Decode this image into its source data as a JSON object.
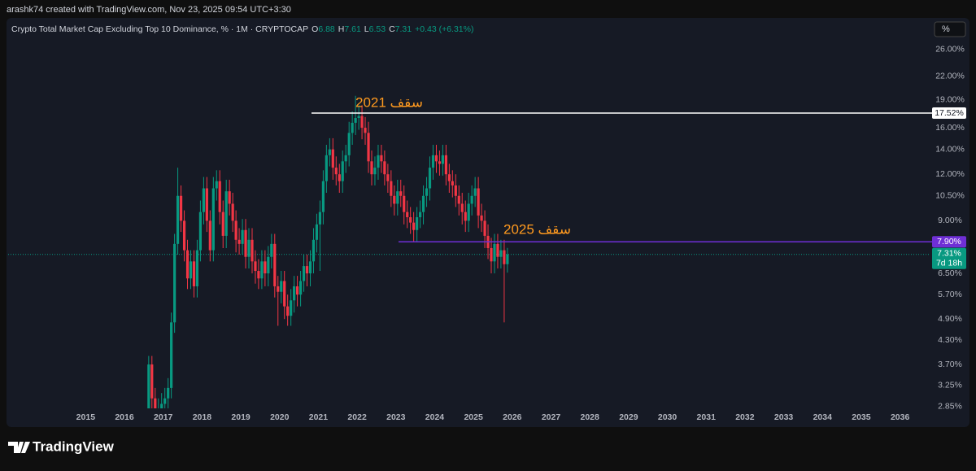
{
  "header": {
    "credit": "arashk74 created with TradingView.com, Nov 23, 2025 09:54 UTC+3:30",
    "scale_button": "%"
  },
  "chart_data": {
    "type": "candlestick",
    "title": "Crypto Total Market Cap Excluding Top 10 Dominance, % · 1M · CRYPTOCAP",
    "ohlc_labels": [
      "O",
      "H",
      "L",
      "C"
    ],
    "change": "+0.43 (+6.31%)",
    "up_color": "#089981",
    "down_color": "#f23645",
    "log_scale": true,
    "grid": false,
    "x": [
      2016.625,
      2016.708,
      2016.792,
      2016.875,
      2016.958,
      2017.042,
      2017.125,
      2017.208,
      2017.292,
      2017.375,
      2017.458,
      2017.542,
      2017.625,
      2017.708,
      2017.792,
      2017.875,
      2017.958,
      2018.042,
      2018.125,
      2018.208,
      2018.292,
      2018.375,
      2018.458,
      2018.542,
      2018.625,
      2018.708,
      2018.792,
      2018.875,
      2018.958,
      2019.042,
      2019.125,
      2019.208,
      2019.292,
      2019.375,
      2019.458,
      2019.542,
      2019.625,
      2019.708,
      2019.792,
      2019.875,
      2019.958,
      2020.042,
      2020.125,
      2020.208,
      2020.292,
      2020.375,
      2020.458,
      2020.542,
      2020.625,
      2020.708,
      2020.792,
      2020.875,
      2020.958,
      2021.042,
      2021.125,
      2021.208,
      2021.292,
      2021.375,
      2021.458,
      2021.542,
      2021.625,
      2021.708,
      2021.792,
      2021.875,
      2021.958,
      2022.042,
      2022.125,
      2022.208,
      2022.292,
      2022.375,
      2022.458,
      2022.542,
      2022.625,
      2022.708,
      2022.792,
      2022.875,
      2022.958,
      2023.042,
      2023.125,
      2023.208,
      2023.292,
      2023.375,
      2023.458,
      2023.542,
      2023.625,
      2023.708,
      2023.792,
      2023.875,
      2023.958,
      2024.042,
      2024.125,
      2024.208,
      2024.292,
      2024.375,
      2024.458,
      2024.542,
      2024.625,
      2024.708,
      2024.792,
      2024.875,
      2024.958,
      2025.042,
      2025.125,
      2025.208,
      2025.292,
      2025.375,
      2025.458,
      2025.542,
      2025.625,
      2025.708,
      2025.792,
      2025.875
    ],
    "open": [
      2.5,
      3.7,
      3.0,
      2.6,
      2.8,
      2.9,
      3.0,
      3.2,
      4.8,
      7.8,
      10.5,
      9.0,
      7.5,
      6.3,
      7.0,
      6.0,
      7.5,
      9.5,
      11.0,
      9.0,
      7.5,
      11.0,
      11.5,
      9.5,
      8.2,
      10.8,
      10.0,
      9.0,
      8.0,
      7.8,
      8.5,
      7.2,
      8.0,
      7.0,
      6.6,
      6.3,
      7.0,
      6.5,
      7.2,
      7.8,
      6.0,
      5.8,
      6.2,
      5.3,
      5.0,
      5.5,
      6.0,
      5.7,
      6.2,
      6.8,
      6.5,
      7.0,
      8.0,
      8.8,
      9.5,
      11.5,
      13.5,
      14.0,
      12.5,
      12.0,
      11.5,
      13.0,
      13.5,
      15.5,
      16.5,
      17.0,
      17.2,
      16.0,
      15.5,
      13.0,
      12.0,
      12.5,
      13.5,
      13.0,
      12.0,
      11.5,
      10.5,
      10.0,
      10.8,
      10.5,
      9.5,
      9.2,
      8.9,
      8.5,
      9.2,
      9.5,
      10.5,
      11.0,
      12.5,
      13.5,
      13.0,
      12.8,
      13.5,
      12.0,
      11.5,
      11.2,
      10.5,
      10.0,
      9.5,
      9.0,
      10.0,
      10.5,
      11.0,
      9.3,
      9.0,
      8.2,
      7.6,
      7.0,
      7.8,
      7.2,
      7.5,
      6.88
    ],
    "high": [
      3.9,
      3.9,
      3.2,
      3.0,
      3.1,
      3.2,
      3.4,
      5.1,
      8.3,
      12.5,
      11.2,
      9.6,
      8.0,
      7.5,
      7.5,
      8.0,
      10.2,
      11.8,
      11.8,
      9.6,
      11.8,
      12.3,
      12.3,
      10.2,
      11.6,
      11.6,
      10.7,
      9.6,
      8.6,
      9.1,
      9.1,
      8.6,
      8.6,
      7.5,
      7.1,
      7.5,
      7.5,
      7.7,
      8.3,
      8.3,
      6.4,
      6.6,
      6.6,
      5.7,
      5.9,
      6.4,
      6.4,
      6.6,
      7.3,
      7.3,
      7.5,
      8.6,
      9.4,
      10.2,
      12.3,
      14.4,
      15.0,
      15.0,
      13.4,
      12.8,
      13.9,
      14.4,
      16.6,
      17.7,
      19.5,
      18.4,
      18.4,
      17.1,
      16.6,
      13.9,
      13.4,
      14.4,
      14.4,
      13.9,
      12.8,
      12.3,
      11.2,
      11.6,
      11.6,
      11.2,
      10.2,
      9.8,
      9.5,
      9.8,
      10.2,
      11.2,
      11.8,
      13.4,
      14.4,
      14.4,
      13.9,
      14.4,
      14.4,
      12.8,
      12.3,
      12.0,
      11.2,
      10.7,
      10.2,
      10.7,
      11.2,
      11.8,
      11.8,
      10.0,
      9.6,
      8.8,
      8.1,
      8.3,
      8.3,
      8.0,
      8.0,
      7.61
    ],
    "low": [
      2.4,
      2.8,
      2.4,
      2.4,
      2.6,
      2.7,
      2.8,
      3.0,
      4.5,
      7.3,
      8.4,
      7.0,
      5.9,
      5.9,
      5.6,
      5.6,
      7.0,
      8.8,
      8.4,
      7.0,
      7.0,
      10.2,
      8.8,
      7.6,
      7.6,
      9.3,
      8.4,
      7.4,
      7.3,
      7.3,
      6.7,
      6.7,
      6.5,
      6.1,
      5.9,
      5.9,
      6.0,
      6.0,
      6.7,
      5.6,
      4.7,
      5.4,
      4.9,
      4.7,
      4.7,
      5.1,
      5.3,
      5.3,
      5.8,
      6.0,
      6.0,
      6.5,
      7.4,
      6.6,
      8.8,
      10.7,
      12.6,
      11.6,
      11.2,
      10.7,
      10.7,
      12.1,
      12.6,
      14.4,
      15.3,
      15.8,
      14.9,
      14.4,
      12.1,
      11.2,
      11.2,
      11.6,
      12.1,
      11.2,
      10.7,
      9.8,
      9.3,
      9.3,
      9.8,
      8.8,
      8.6,
      8.3,
      7.9,
      7.9,
      8.6,
      8.8,
      9.8,
      10.2,
      11.6,
      12.1,
      11.9,
      11.9,
      11.2,
      10.7,
      10.4,
      9.8,
      9.3,
      8.8,
      8.4,
      8.4,
      9.3,
      9.8,
      8.6,
      8.4,
      7.6,
      7.1,
      6.5,
      6.5,
      6.7,
      6.7,
      4.8,
      6.53
    ],
    "close": [
      3.7,
      3.0,
      2.6,
      2.8,
      2.9,
      3.0,
      3.2,
      4.8,
      7.8,
      10.5,
      9.0,
      7.5,
      6.3,
      7.0,
      6.0,
      7.5,
      9.5,
      11.0,
      9.0,
      7.5,
      11.0,
      11.5,
      9.5,
      8.2,
      10.8,
      10.0,
      9.0,
      8.0,
      7.8,
      8.5,
      7.2,
      8.0,
      7.0,
      6.6,
      6.3,
      7.0,
      6.5,
      7.2,
      7.8,
      6.0,
      5.8,
      6.2,
      5.3,
      5.0,
      5.5,
      6.0,
      5.7,
      6.2,
      6.8,
      6.5,
      7.0,
      8.0,
      8.8,
      9.5,
      11.5,
      13.5,
      14.0,
      12.5,
      12.0,
      11.5,
      13.0,
      13.5,
      15.5,
      16.5,
      17.0,
      17.2,
      16.0,
      15.5,
      13.0,
      12.0,
      12.5,
      13.5,
      13.0,
      12.0,
      11.5,
      10.5,
      10.0,
      10.8,
      10.5,
      9.5,
      9.2,
      8.9,
      8.5,
      9.2,
      9.5,
      10.5,
      11.0,
      12.5,
      13.5,
      13.0,
      12.8,
      13.5,
      12.0,
      11.5,
      11.2,
      10.5,
      10.0,
      9.5,
      9.0,
      10.0,
      10.5,
      11.0,
      9.3,
      9.0,
      8.2,
      7.6,
      7.0,
      7.8,
      7.2,
      7.5,
      6.88,
      7.31
    ],
    "xlim": [
      2013.0,
      2036.7
    ],
    "xticks": [
      2015,
      2016,
      2017,
      2018,
      2019,
      2020,
      2021,
      2022,
      2023,
      2024,
      2025,
      2026,
      2027,
      2028,
      2029,
      2030,
      2031,
      2032,
      2033,
      2034,
      2035,
      2036
    ],
    "ylim": [
      2.82,
      27.7
    ],
    "yticks": [
      {
        "value": 26,
        "label": "26.00%"
      },
      {
        "value": 22,
        "label": "22.00%"
      },
      {
        "value": 19,
        "label": "19.00%"
      },
      {
        "value": 16,
        "label": "16.00%"
      },
      {
        "value": 14,
        "label": "14.00%"
      },
      {
        "value": 12,
        "label": "12.00%"
      },
      {
        "value": 10.5,
        "label": "10.50%"
      },
      {
        "value": 9,
        "label": "9.00%"
      },
      {
        "value": 6.5,
        "label": "6.50%"
      },
      {
        "value": 5.7,
        "label": "5.70%"
      },
      {
        "value": 4.9,
        "label": "4.90%"
      },
      {
        "value": 4.3,
        "label": "4.30%"
      },
      {
        "value": 3.7,
        "label": "3.70%"
      },
      {
        "value": 3.25,
        "label": "3.25%"
      },
      {
        "value": 2.85,
        "label": "2.85%"
      }
    ],
    "levels": [
      {
        "value": 17.52,
        "label": "17.52%",
        "color": "#ffffff",
        "text_color": "#131722"
      },
      {
        "value": 7.9,
        "label": "7.90%",
        "color": "#6f2fd6",
        "text_color": "#ffffff"
      }
    ],
    "last_price": {
      "value": 7.31,
      "label": "7.31%",
      "countdown": "7d 18h"
    },
    "annotations": [
      "سقف 2021",
      "سقف 2025"
    ],
    "annotation_color": "#ff9a1f"
  },
  "footer": {
    "brand": "TradingView"
  }
}
